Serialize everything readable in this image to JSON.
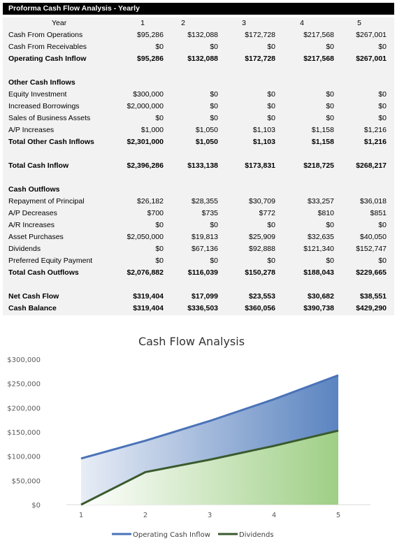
{
  "title": "Proforma Cash Flow Analysis - Yearly",
  "header": {
    "label": "Year",
    "years": [
      "1",
      "2",
      "3",
      "4",
      "5"
    ]
  },
  "rows": [
    {
      "id": "cash-from-operations",
      "label": "Cash From Operations",
      "values": [
        "$95,286",
        "$132,088",
        "$172,728",
        "$217,568",
        "$267,001"
      ],
      "bold": false
    },
    {
      "id": "cash-from-receivables",
      "label": "Cash From Receivables",
      "values": [
        "$0",
        "$0",
        "$0",
        "$0",
        "$0"
      ],
      "bold": false
    },
    {
      "id": "operating-cash-inflow",
      "label": "Operating Cash Inflow",
      "values": [
        "$95,286",
        "$132,088",
        "$172,728",
        "$217,568",
        "$267,001"
      ],
      "bold": true
    },
    {
      "id": "spacer-1",
      "label": "",
      "values": [
        "",
        "",
        "",
        "",
        ""
      ],
      "bold": false
    },
    {
      "id": "other-cash-inflows-heading",
      "label": "Other Cash Inflows",
      "values": [
        "",
        "",
        "",
        "",
        ""
      ],
      "bold": true
    },
    {
      "id": "equity-investment",
      "label": "Equity Investment",
      "values": [
        "$300,000",
        "$0",
        "$0",
        "$0",
        "$0"
      ],
      "bold": false
    },
    {
      "id": "increased-borrowings",
      "label": "Increased Borrowings",
      "values": [
        "$2,000,000",
        "$0",
        "$0",
        "$0",
        "$0"
      ],
      "bold": false
    },
    {
      "id": "sales-of-business-assets",
      "label": "Sales of Business Assets",
      "values": [
        "$0",
        "$0",
        "$0",
        "$0",
        "$0"
      ],
      "bold": false
    },
    {
      "id": "ap-increases",
      "label": "A/P Increases",
      "values": [
        "$1,000",
        "$1,050",
        "$1,103",
        "$1,158",
        "$1,216"
      ],
      "bold": false
    },
    {
      "id": "total-other-cash-inflows",
      "label": "Total Other Cash Inflows",
      "values": [
        "$2,301,000",
        "$1,050",
        "$1,103",
        "$1,158",
        "$1,216"
      ],
      "bold": true
    },
    {
      "id": "spacer-2",
      "label": "",
      "values": [
        "",
        "",
        "",
        "",
        ""
      ],
      "bold": false
    },
    {
      "id": "total-cash-inflow",
      "label": "Total Cash Inflow",
      "values": [
        "$2,396,286",
        "$133,138",
        "$173,831",
        "$218,725",
        "$268,217"
      ],
      "bold": true
    },
    {
      "id": "spacer-3",
      "label": "",
      "values": [
        "",
        "",
        "",
        "",
        ""
      ],
      "bold": false
    },
    {
      "id": "cash-outflows-heading",
      "label": "Cash Outflows",
      "values": [
        "",
        "",
        "",
        "",
        ""
      ],
      "bold": true
    },
    {
      "id": "repayment-of-principal",
      "label": "Repayment of Principal",
      "values": [
        "$26,182",
        "$28,355",
        "$30,709",
        "$33,257",
        "$36,018"
      ],
      "bold": false
    },
    {
      "id": "ap-decreases",
      "label": "A/P Decreases",
      "values": [
        "$700",
        "$735",
        "$772",
        "$810",
        "$851"
      ],
      "bold": false
    },
    {
      "id": "ar-increases",
      "label": "A/R Increases",
      "values": [
        "$0",
        "$0",
        "$0",
        "$0",
        "$0"
      ],
      "bold": false
    },
    {
      "id": "asset-purchases",
      "label": "Asset Purchases",
      "values": [
        "$2,050,000",
        "$19,813",
        "$25,909",
        "$32,635",
        "$40,050"
      ],
      "bold": false
    },
    {
      "id": "dividends",
      "label": "Dividends",
      "values": [
        "$0",
        "$67,136",
        "$92,888",
        "$121,340",
        "$152,747"
      ],
      "bold": false
    },
    {
      "id": "preferred-equity-payment",
      "label": "Preferred Equity Payment",
      "values": [
        "$0",
        "$0",
        "$0",
        "$0",
        "$0"
      ],
      "bold": false
    },
    {
      "id": "total-cash-outflows",
      "label": "Total Cash Outflows",
      "values": [
        "$2,076,882",
        "$116,039",
        "$150,278",
        "$188,043",
        "$229,665"
      ],
      "bold": true
    },
    {
      "id": "spacer-4",
      "label": "",
      "values": [
        "",
        "",
        "",
        "",
        ""
      ],
      "bold": false
    },
    {
      "id": "net-cash-flow",
      "label": "Net Cash Flow",
      "values": [
        "$319,404",
        "$17,099",
        "$23,553",
        "$30,682",
        "$38,551"
      ],
      "bold": true
    },
    {
      "id": "cash-balance",
      "label": "Cash Balance",
      "values": [
        "$319,404",
        "$336,503",
        "$360,056",
        "$390,738",
        "$429,290"
      ],
      "bold": true
    }
  ],
  "chart_data": {
    "type": "area",
    "title": "Cash Flow Analysis",
    "x": [
      1,
      2,
      3,
      4,
      5
    ],
    "ylim": [
      0,
      300000
    ],
    "yticks": [
      0,
      50000,
      100000,
      150000,
      200000,
      250000,
      300000
    ],
    "ytick_labels": [
      "$0",
      "$50,000",
      "$100,000",
      "$150,000",
      "$200,000",
      "$250,000",
      "$300,000"
    ],
    "xtick_labels": [
      "1",
      "2",
      "3",
      "4",
      "5"
    ],
    "grid": false,
    "legend_position": "bottom",
    "series": [
      {
        "name": "Operating Cash Inflow",
        "values": [
          95286,
          132088,
          172728,
          217568,
          267001
        ],
        "color": "#4a73b8"
      },
      {
        "name": "Dividends",
        "values": [
          0,
          67136,
          92888,
          121340,
          152747
        ],
        "color": "#3a5a2e"
      }
    ]
  }
}
